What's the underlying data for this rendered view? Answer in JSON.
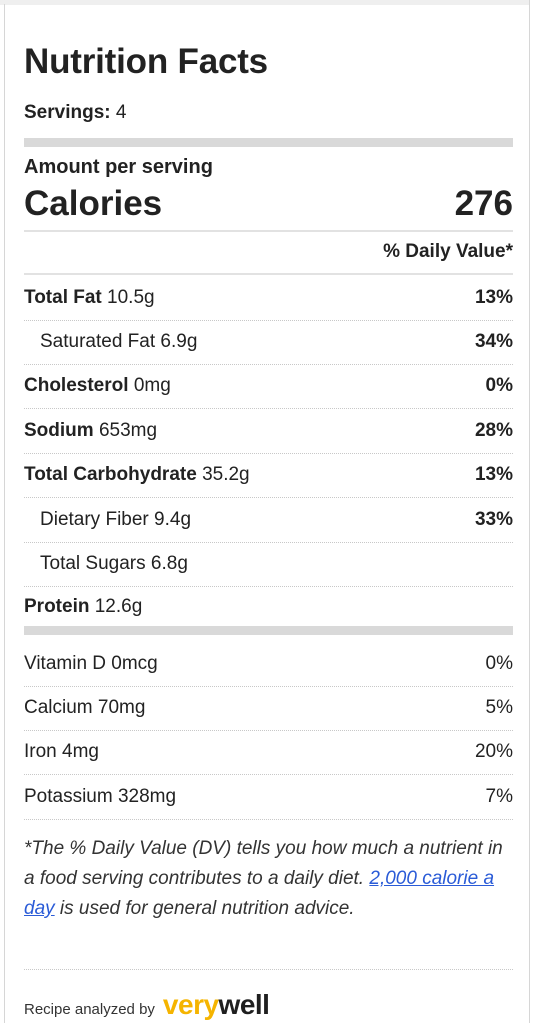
{
  "title": "Nutrition Facts",
  "servings": {
    "label": "Servings:",
    "value": "4"
  },
  "amount_per_serving": "Amount per serving",
  "calories": {
    "label": "Calories",
    "value": "276"
  },
  "daily_value_header": "% Daily Value*",
  "nutrients": [
    {
      "name": "Total Fat",
      "amount": "10.5g",
      "pct": "13%"
    },
    {
      "name": "Saturated Fat",
      "amount": "6.9g",
      "pct": "34%"
    },
    {
      "name": "Cholesterol",
      "amount": "0mg",
      "pct": "0%"
    },
    {
      "name": "Sodium",
      "amount": "653mg",
      "pct": "28%"
    },
    {
      "name": "Total Carbohydrate",
      "amount": "35.2g",
      "pct": "13%"
    },
    {
      "name": "Dietary Fiber",
      "amount": "9.4g",
      "pct": "33%"
    },
    {
      "name": "Total Sugars",
      "amount": "6.8g",
      "pct": ""
    },
    {
      "name": "Protein",
      "amount": "12.6g",
      "pct": ""
    }
  ],
  "vitamins": [
    {
      "text": "Vitamin D 0mcg",
      "pct": "0%"
    },
    {
      "text": "Calcium 70mg",
      "pct": "5%"
    },
    {
      "text": "Iron 4mg",
      "pct": "20%"
    },
    {
      "text": "Potassium 328mg",
      "pct": "7%"
    }
  ],
  "footnote": {
    "before": "*The % Daily Value (DV) tells you how much a nutrient in a food serving contributes to a daily diet.",
    "link": "2,000 calorie a day",
    "after": "is used for general nutrition advice."
  },
  "analyzed_by": "Recipe analyzed by",
  "brand": {
    "part1": "very",
    "part2": "well"
  },
  "colors": {
    "link": "#2a5bd7",
    "brand_yellow": "#f5b400",
    "bar_gray": "#d9d9d9"
  }
}
